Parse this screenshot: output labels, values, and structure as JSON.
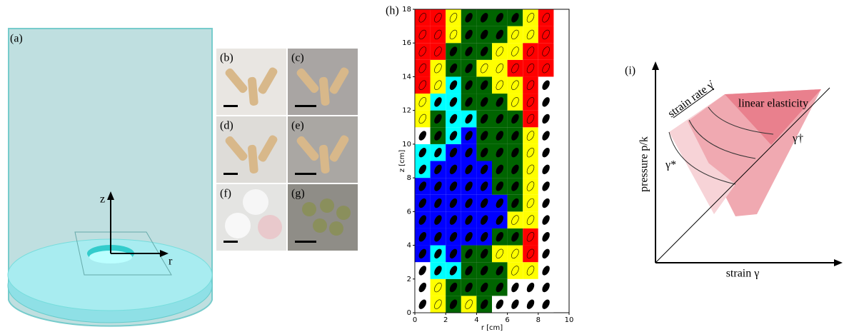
{
  "panels": {
    "a": {
      "label": "(a)",
      "axis_z": "z",
      "axis_r": "r"
    },
    "photos": [
      {
        "label": "(b)"
      },
      {
        "label": "(c)"
      },
      {
        "label": "(d)"
      },
      {
        "label": "(e)"
      },
      {
        "label": "(f)"
      },
      {
        "label": "(g)"
      }
    ],
    "h": {
      "label": "(h)",
      "x_label": "r [cm]",
      "y_label": "z [cm]",
      "xlim": [
        0,
        10
      ],
      "ylim": [
        0,
        18
      ],
      "xticks": [
        0,
        2,
        4,
        6,
        8,
        10
      ],
      "yticks": [
        0,
        2,
        4,
        6,
        8,
        10,
        12,
        14,
        16,
        18
      ],
      "palette": [
        "#ffffff",
        "#ff0000",
        "#ffff00",
        "#006400",
        "#00ffff",
        "#0000ff"
      ],
      "cells": [
        [
          0,
          2,
          3,
          2,
          3,
          0,
          0,
          0,
          0
        ],
        [
          0,
          2,
          3,
          3,
          3,
          3,
          0,
          0,
          0
        ],
        [
          0,
          4,
          4,
          3,
          3,
          3,
          2,
          2,
          0
        ],
        [
          5,
          4,
          5,
          3,
          3,
          2,
          2,
          1,
          0
        ],
        [
          5,
          5,
          5,
          5,
          5,
          3,
          3,
          1,
          0
        ],
        [
          5,
          5,
          5,
          5,
          5,
          5,
          2,
          2,
          0
        ],
        [
          5,
          5,
          5,
          5,
          5,
          5,
          3,
          2,
          0
        ],
        [
          5,
          5,
          5,
          5,
          5,
          3,
          3,
          2,
          0
        ],
        [
          4,
          5,
          5,
          5,
          5,
          3,
          3,
          2,
          0
        ],
        [
          4,
          4,
          5,
          5,
          3,
          3,
          3,
          2,
          0
        ],
        [
          0,
          3,
          4,
          5,
          3,
          3,
          3,
          2,
          0
        ],
        [
          2,
          3,
          4,
          4,
          3,
          3,
          3,
          1,
          0
        ],
        [
          2,
          4,
          4,
          3,
          3,
          3,
          2,
          1,
          0
        ],
        [
          1,
          2,
          4,
          3,
          3,
          2,
          2,
          1,
          0
        ],
        [
          1,
          2,
          3,
          3,
          2,
          2,
          1,
          1,
          1
        ],
        [
          1,
          1,
          3,
          3,
          3,
          2,
          2,
          1,
          1
        ],
        [
          1,
          1,
          2,
          3,
          3,
          3,
          2,
          2,
          1
        ],
        [
          1,
          1,
          2,
          3,
          3,
          3,
          3,
          2,
          1
        ]
      ]
    },
    "i": {
      "label": "(i)",
      "rate_label": "strain rate γ̇",
      "region_label": "linear elasticity",
      "dagger_label": "γ†",
      "star_label": "γ*",
      "y_label": "pressure p/k",
      "x_label": "strain γ"
    }
  }
}
